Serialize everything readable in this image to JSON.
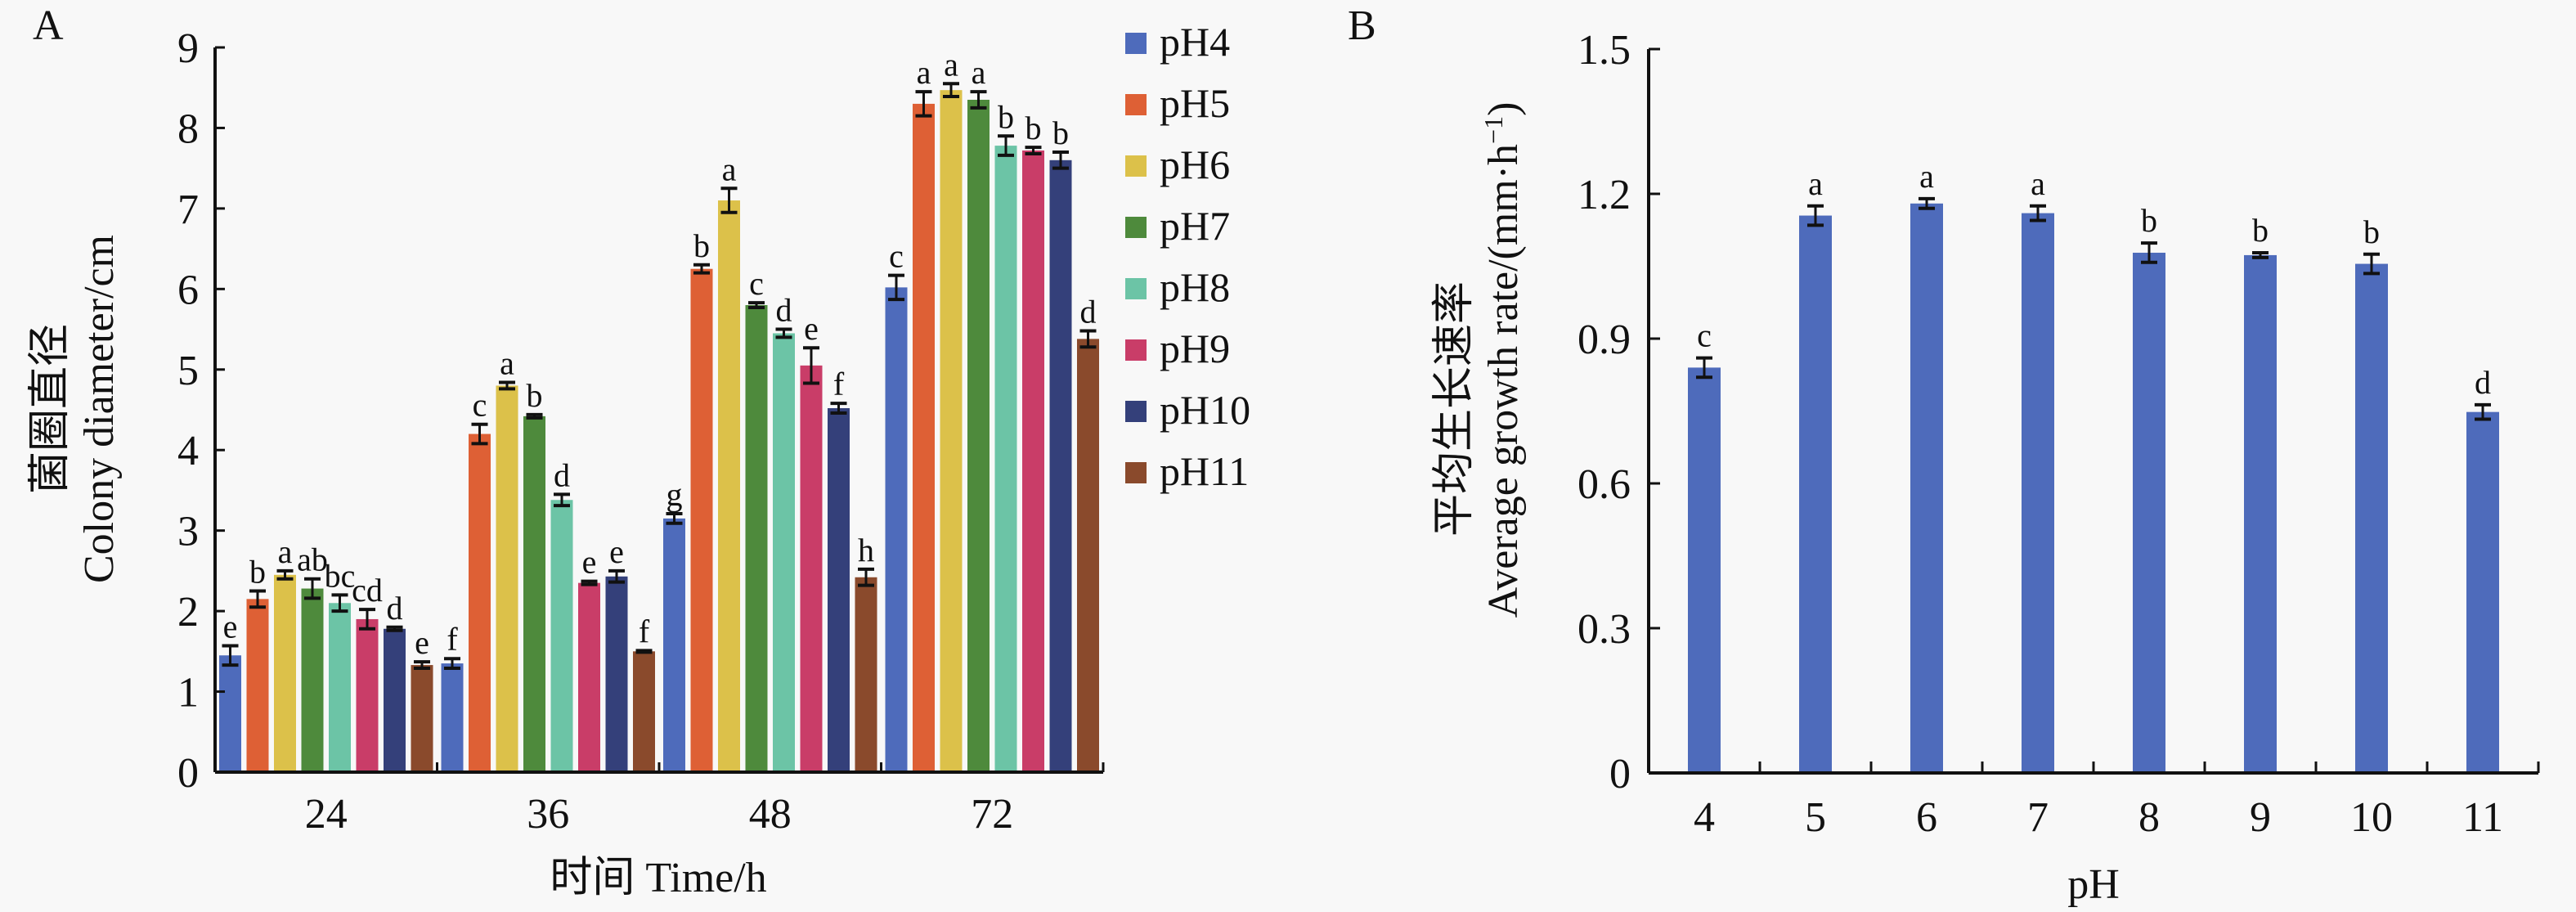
{
  "chart_data": [
    {
      "panel_label": "A",
      "type": "bar",
      "title": "",
      "xlabel": "时间 Time/h",
      "ylabel_cn": "菌圈直径",
      "ylabel_en": "Colony diameter/cm",
      "categories": [
        "24",
        "36",
        "48",
        "72"
      ],
      "ylim": [
        0,
        9
      ],
      "yticks": [
        "0",
        "1",
        "2",
        "3",
        "4",
        "5",
        "6",
        "7",
        "8",
        "9"
      ],
      "grid": false,
      "legend_position": "right",
      "series": [
        {
          "name": "pH4",
          "color": "#4e6bbb",
          "values": [
            1.45,
            1.35,
            3.15,
            6.02
          ],
          "errors": [
            0.12,
            0.06,
            0.06,
            0.15
          ],
          "letters": [
            "e",
            "f",
            "g",
            "c"
          ]
        },
        {
          "name": "pH5",
          "color": "#de6035",
          "values": [
            2.15,
            4.2,
            6.25,
            8.3
          ],
          "errors": [
            0.1,
            0.12,
            0.05,
            0.15
          ],
          "letters": [
            "b",
            "c",
            "b",
            "a"
          ]
        },
        {
          "name": "pH6",
          "color": "#dcc14a",
          "values": [
            2.45,
            4.8,
            7.1,
            8.47
          ],
          "errors": [
            0.05,
            0.04,
            0.15,
            0.08
          ],
          "letters": [
            "a",
            "a",
            "a",
            "a"
          ]
        },
        {
          "name": "pH7",
          "color": "#4e8a3c",
          "values": [
            2.28,
            4.42,
            5.8,
            8.35
          ],
          "errors": [
            0.12,
            0.02,
            0.03,
            0.1
          ],
          "letters": [
            "ab",
            "b",
            "c",
            "a"
          ]
        },
        {
          "name": "pH8",
          "color": "#6cc4a6",
          "values": [
            2.1,
            3.38,
            5.45,
            7.78
          ],
          "errors": [
            0.1,
            0.07,
            0.05,
            0.12
          ],
          "letters": [
            "bc",
            "d",
            "d",
            "b"
          ]
        },
        {
          "name": "pH9",
          "color": "#c93d68",
          "values": [
            1.9,
            2.35,
            5.05,
            7.72
          ],
          "errors": [
            0.12,
            0.02,
            0.22,
            0.04
          ],
          "letters": [
            "cd",
            "e",
            "e",
            "b"
          ]
        },
        {
          "name": "pH10",
          "color": "#34407a",
          "values": [
            1.78,
            2.43,
            4.52,
            7.6
          ],
          "errors": [
            0.02,
            0.07,
            0.06,
            0.1
          ],
          "letters": [
            "d",
            "e",
            "f",
            "b"
          ]
        },
        {
          "name": "pH11",
          "color": "#8a4a2c",
          "values": [
            1.33,
            1.5,
            2.42,
            5.38
          ],
          "errors": [
            0.04,
            0.01,
            0.1,
            0.1
          ],
          "letters": [
            "e",
            "f",
            "h",
            "d"
          ]
        }
      ]
    },
    {
      "panel_label": "B",
      "type": "bar",
      "title": "",
      "xlabel": "pH",
      "ylabel_cn": "平均生长速率",
      "ylabel_en": "Average growth rate/(mm·h",
      "ylabel_sup": "−1",
      "ylabel_close": ")",
      "categories": [
        "4",
        "5",
        "6",
        "7",
        "8",
        "9",
        "10",
        "11"
      ],
      "ylim": [
        0,
        1.5
      ],
      "yticks": [
        "0",
        "0.3",
        "0.6",
        "0.9",
        "1.2",
        "1.5"
      ],
      "grid": false,
      "series": [
        {
          "name": "Average growth rate",
          "color": "#4e6bbb",
          "values": [
            0.84,
            1.155,
            1.18,
            1.16,
            1.078,
            1.073,
            1.055,
            0.748
          ],
          "errors": [
            0.02,
            0.02,
            0.01,
            0.015,
            0.02,
            0.005,
            0.02,
            0.015
          ],
          "letters": [
            "c",
            "a",
            "a",
            "a",
            "b",
            "b",
            "b",
            "d"
          ]
        }
      ]
    }
  ]
}
